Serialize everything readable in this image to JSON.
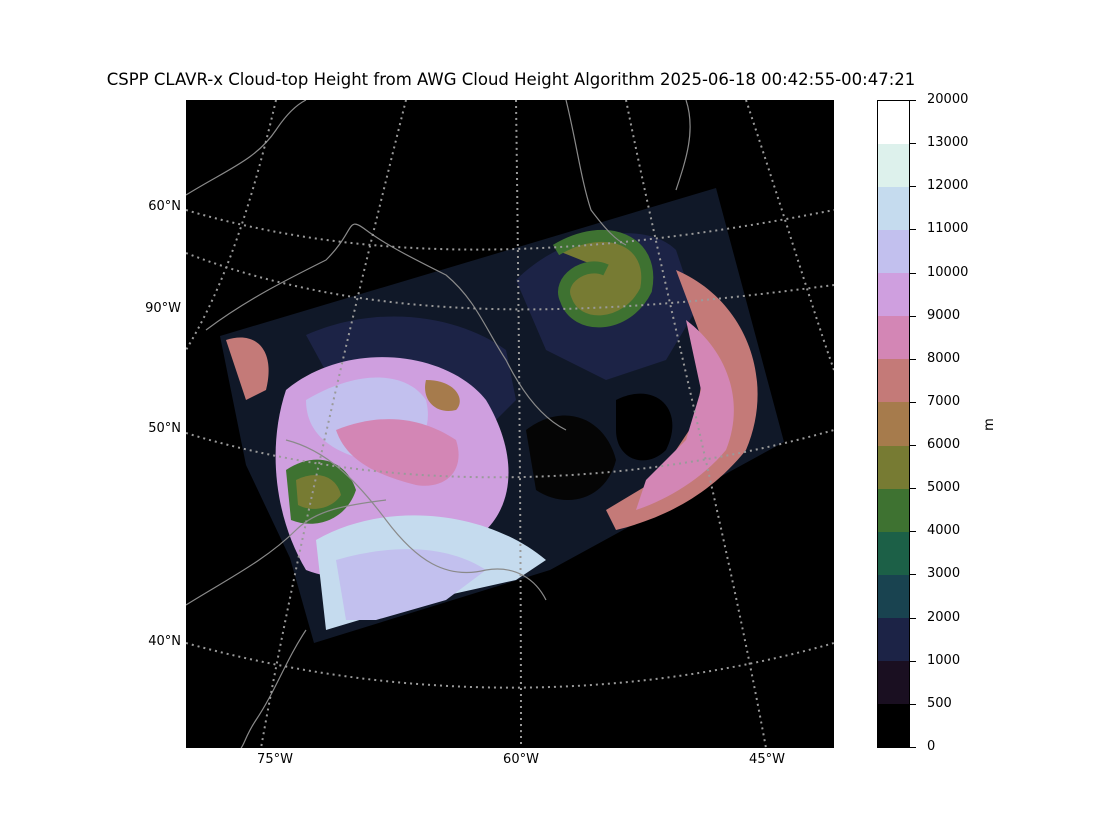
{
  "title": "CSPP CLAVR-x Cloud-top Height from AWG Cloud Height Algorithm 2025-06-18 00:42:55-00:47:21",
  "map": {
    "lat_labels": [
      "60°N",
      "90°W",
      "50°N",
      "40°N"
    ],
    "lon_labels": [
      "75°W",
      "60°W",
      "45°W"
    ]
  },
  "colorbar": {
    "unit": "m",
    "ticks": [
      "20000",
      "13000",
      "12000",
      "11000",
      "10000",
      "9000",
      "8000",
      "7000",
      "6000",
      "5000",
      "4000",
      "3000",
      "2000",
      "1000",
      "500",
      "0"
    ],
    "colors": [
      "#ffffff",
      "#ddf1ec",
      "#c5dbee",
      "#c2c0ee",
      "#cf9fdf",
      "#d386b5",
      "#c47a78",
      "#a67b4c",
      "#777b33",
      "#3e7231",
      "#1c6047",
      "#194350",
      "#1c2346",
      "#1a0f21",
      "#000000"
    ]
  }
}
